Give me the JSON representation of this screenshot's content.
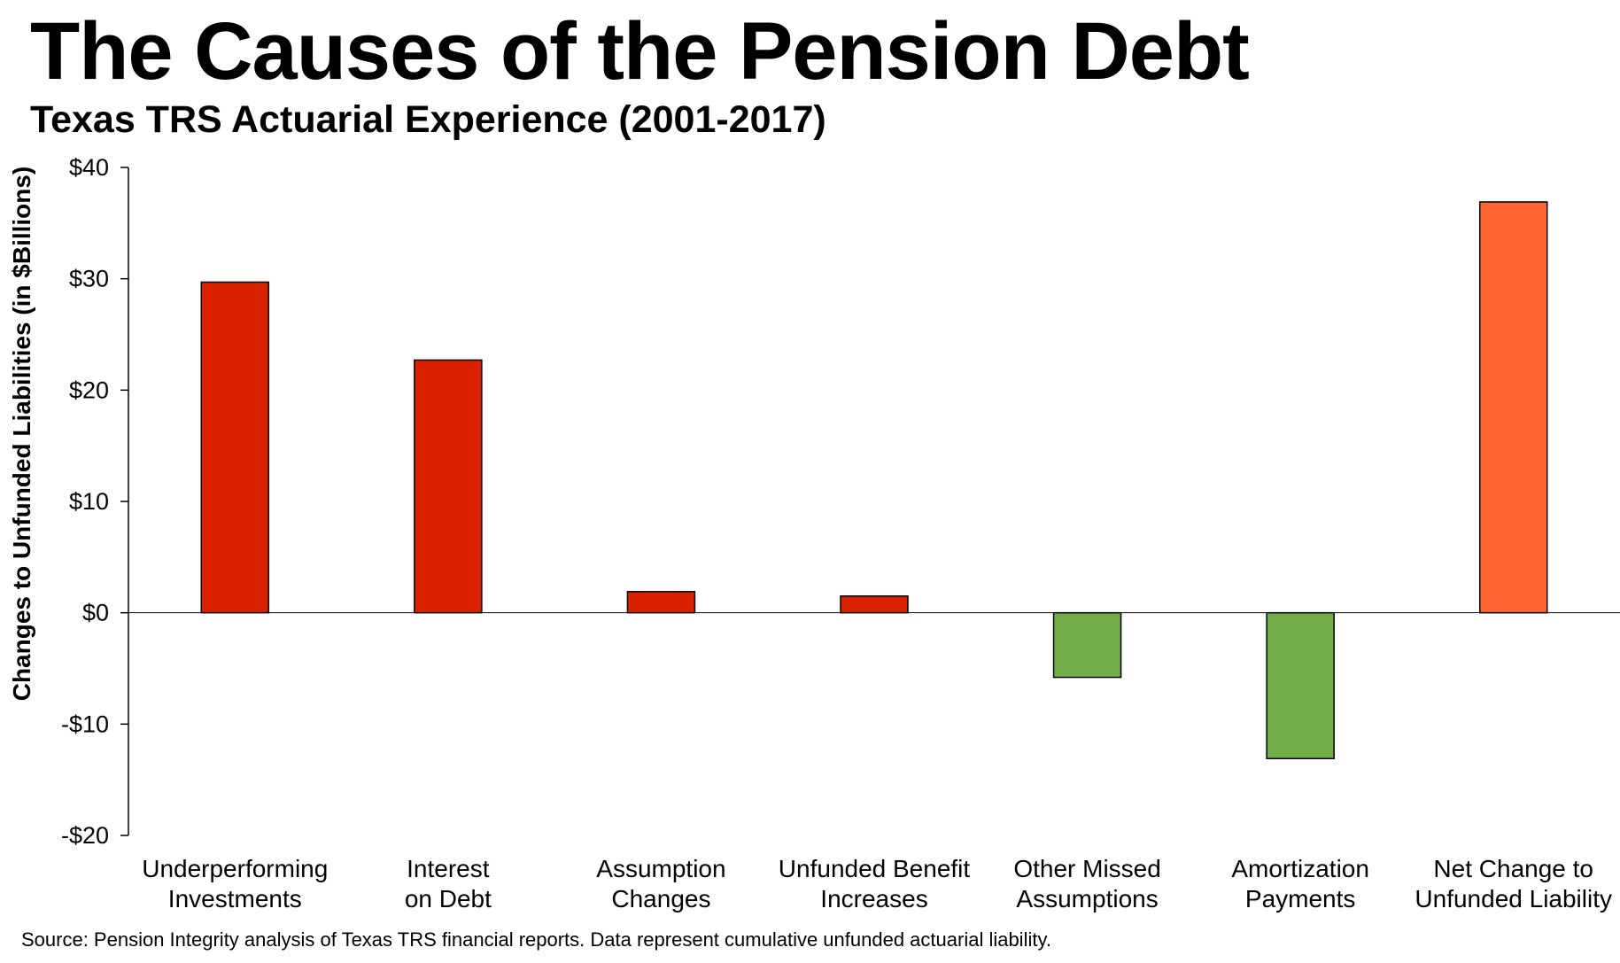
{
  "chart_data": {
    "type": "bar",
    "title": "The Causes of the Pension Debt",
    "subtitle": "Texas TRS Actuarial Experience (2001-2017)",
    "xlabel": "",
    "ylabel": "Changes to Unfunded Liabilities (in $Billions)",
    "ylim": [
      -20,
      40
    ],
    "yticks": [
      {
        "value": 40,
        "label": "$40"
      },
      {
        "value": 30,
        "label": "$30"
      },
      {
        "value": 20,
        "label": "$20"
      },
      {
        "value": 10,
        "label": "$10"
      },
      {
        "value": 0,
        "label": "$0"
      },
      {
        "value": -10,
        "label": "-$10"
      },
      {
        "value": -20,
        "label": "-$20"
      }
    ],
    "grid": false,
    "legend": "none",
    "categories": [
      {
        "line1": "Underperforming",
        "line2": "Investments"
      },
      {
        "line1": "Interest",
        "line2": "on Debt"
      },
      {
        "line1": "Assumption",
        "line2": "Changes"
      },
      {
        "line1": "Unfunded Benefit",
        "line2": "Increases"
      },
      {
        "line1": "Other Missed",
        "line2": "Assumptions"
      },
      {
        "line1": "Amortization",
        "line2": "Payments"
      },
      {
        "line1": "Net Change to",
        "line2": "Unfunded Liability"
      }
    ],
    "values": [
      29.7,
      22.7,
      1.9,
      1.5,
      -5.8,
      -13.1,
      36.9
    ],
    "colors": [
      "#d92100",
      "#d92100",
      "#d92100",
      "#d92100",
      "#70ad47",
      "#70ad47",
      "#ff6633"
    ],
    "source": "Source: Pension Integrity analysis of Texas TRS financial reports. Data represent cumulative unfunded actuarial liability."
  }
}
